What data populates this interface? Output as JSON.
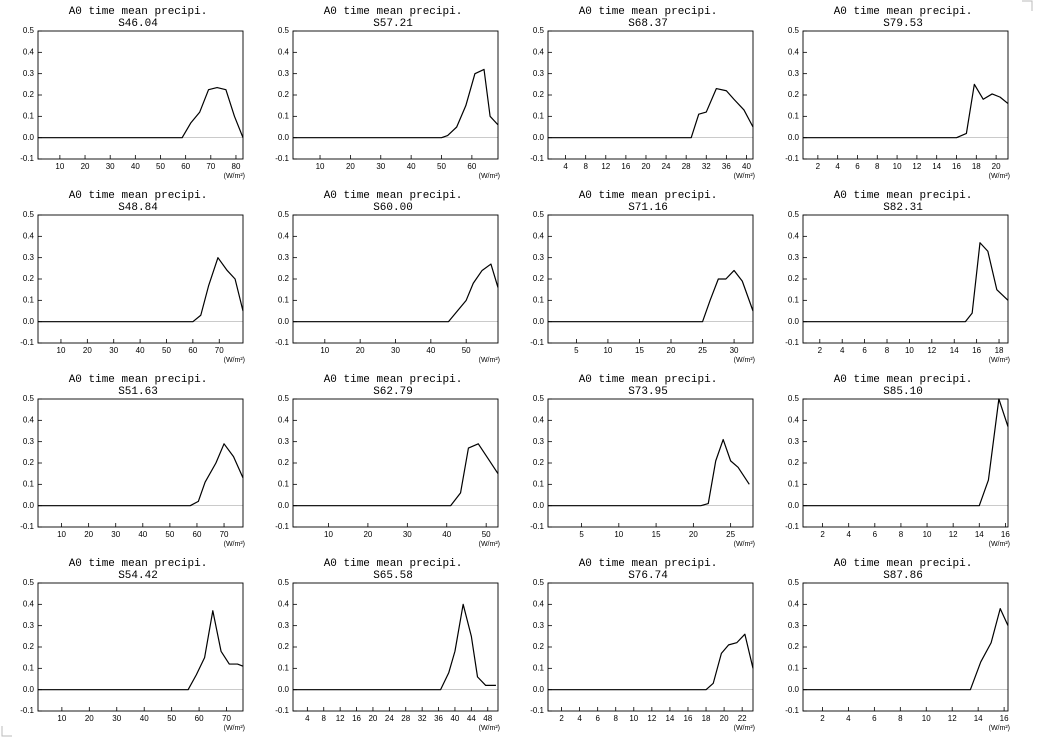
{
  "chart_data": [
    {
      "type": "line",
      "title": "A0 time mean precipi.",
      "subtitle": "S46.04",
      "x_label": "(W/m²)",
      "color": "#000000",
      "x": [
        1.3,
        58.6,
        62.1,
        65.6,
        69.1,
        72.5,
        76.0,
        79.4,
        82.8
      ],
      "values": [
        0,
        0,
        0.07,
        0.12,
        0.225,
        0.235,
        0.225,
        0.1,
        0.0
      ],
      "xlim": [
        1.3,
        82.8
      ],
      "xticks": [
        10,
        20,
        30,
        40,
        50,
        60,
        70,
        80
      ],
      "ylim": [
        -0.1,
        0.5
      ],
      "yticks": [
        -0.1,
        {
          "value": 0,
          "label": "0.0"
        },
        0.1,
        0.2,
        0.3,
        0.4,
        0.5
      ]
    },
    {
      "type": "line",
      "title": "A0 time mean precipi.",
      "subtitle": "S57.21",
      "x_label": "(W/m²)",
      "color": "#000000",
      "x": [
        1.1,
        50,
        52,
        55,
        58,
        61,
        64,
        66,
        68.6
      ],
      "values": [
        0,
        0,
        0.01,
        0.05,
        0.15,
        0.3,
        0.32,
        0.1,
        0.06
      ],
      "xlim": [
        1.1,
        68.6
      ],
      "xticks": [
        10,
        20,
        30,
        40,
        50,
        60
      ],
      "ylim": [
        -0.1,
        0.5
      ],
      "yticks": [
        -0.1,
        {
          "value": 0,
          "label": "0.0"
        },
        0.1,
        0.2,
        0.3,
        0.4,
        0.5
      ]
    },
    {
      "type": "line",
      "title": "A0 time mean precipi.",
      "subtitle": "S68.37",
      "x_label": "(W/m²)",
      "color": "#000000",
      "x": [
        0.5,
        29,
        30.5,
        32,
        34,
        36,
        37.5,
        39.5,
        41.3
      ],
      "values": [
        0,
        0,
        0.11,
        0.12,
        0.23,
        0.22,
        0.18,
        0.13,
        0.05
      ],
      "xlim": [
        0.5,
        41.3
      ],
      "xticks": [
        4,
        8,
        12,
        16,
        20,
        24,
        28,
        32,
        36,
        40
      ],
      "ylim": [
        -0.1,
        0.5
      ],
      "yticks": [
        -0.1,
        {
          "value": 0,
          "label": "0.0"
        },
        0.1,
        0.2,
        0.3,
        0.4,
        0.5
      ]
    },
    {
      "type": "line",
      "title": "A0 time mean precipi.",
      "subtitle": "S79.53",
      "x_label": "(W/m²)",
      "color": "#000000",
      "x": [
        0.5,
        16,
        17,
        17.8,
        18.7,
        19.6,
        20.4,
        21.2
      ],
      "values": [
        0,
        0,
        0.02,
        0.25,
        0.18,
        0.205,
        0.19,
        0.16
      ],
      "xlim": [
        0.5,
        21.2
      ],
      "xticks": [
        2,
        4,
        6,
        8,
        10,
        12,
        14,
        16,
        18,
        20
      ],
      "ylim": [
        -0.1,
        0.5
      ],
      "yticks": [
        -0.1,
        {
          "value": 0,
          "label": "0.0"
        },
        0.1,
        0.2,
        0.3,
        0.4,
        0.5
      ]
    },
    {
      "type": "line",
      "title": "A0 time mean precipi.",
      "subtitle": "S48.84",
      "x_label": "(W/m²)",
      "color": "#000000",
      "x": [
        1.3,
        60,
        63,
        66,
        69.5,
        73,
        76,
        79
      ],
      "values": [
        0,
        0,
        0.03,
        0.17,
        0.3,
        0.24,
        0.2,
        0.05
      ],
      "xlim": [
        1.3,
        79
      ],
      "xticks": [
        10,
        20,
        30,
        40,
        50,
        60,
        70
      ],
      "ylim": [
        -0.1,
        0.5
      ],
      "yticks": [
        -0.1,
        {
          "value": 0,
          "label": "0.0"
        },
        0.1,
        0.2,
        0.3,
        0.4,
        0.5
      ]
    },
    {
      "type": "line",
      "title": "A0 time mean precipi.",
      "subtitle": "S60.00",
      "x_label": "(W/m²)",
      "color": "#000000",
      "x": [
        1,
        45,
        47.5,
        50,
        52,
        54.5,
        57,
        59
      ],
      "values": [
        0,
        0,
        0.05,
        0.1,
        0.18,
        0.24,
        0.27,
        0.16
      ],
      "xlim": [
        1,
        59
      ],
      "xticks": [
        10,
        20,
        30,
        40,
        50
      ],
      "ylim": [
        -0.1,
        0.5
      ],
      "yticks": [
        -0.1,
        {
          "value": 0,
          "label": "0.0"
        },
        0.1,
        0.2,
        0.3,
        0.4,
        0.5
      ]
    },
    {
      "type": "line",
      "title": "A0 time mean precipi.",
      "subtitle": "S71.16",
      "x_label": "(W/m²)",
      "color": "#000000",
      "x": [
        0.5,
        25,
        26.2,
        27.5,
        28.7,
        30,
        31.3,
        33
      ],
      "values": [
        0,
        0,
        0.1,
        0.2,
        0.2,
        0.24,
        0.19,
        0.05
      ],
      "xlim": [
        0.5,
        33
      ],
      "xticks": [
        5,
        10,
        15,
        20,
        25,
        30
      ],
      "ylim": [
        -0.1,
        0.5
      ],
      "yticks": [
        -0.1,
        {
          "value": 0,
          "label": "0.0"
        },
        0.1,
        0.2,
        0.3,
        0.4,
        0.5
      ]
    },
    {
      "type": "line",
      "title": "A0 time mean precipi.",
      "subtitle": "S82.31",
      "x_label": "(W/m²)",
      "color": "#000000",
      "x": [
        0.5,
        15,
        15.6,
        16.3,
        17,
        17.8,
        18.8
      ],
      "values": [
        0,
        0,
        0.04,
        0.37,
        0.33,
        0.15,
        0.1
      ],
      "xlim": [
        0.5,
        18.8
      ],
      "xticks": [
        2,
        4,
        6,
        8,
        10,
        12,
        14,
        16,
        18
      ],
      "ylim": [
        -0.1,
        0.5
      ],
      "yticks": [
        -0.1,
        {
          "value": 0,
          "label": "0.0"
        },
        0.1,
        0.2,
        0.3,
        0.4,
        0.5
      ]
    },
    {
      "type": "line",
      "title": "A0 time mean precipi.",
      "subtitle": "S51.63",
      "x_label": "(W/m²)",
      "color": "#000000",
      "x": [
        1.3,
        57.5,
        60.5,
        63,
        67,
        70,
        73.5,
        77
      ],
      "values": [
        0,
        0,
        0.02,
        0.11,
        0.2,
        0.29,
        0.23,
        0.13
      ],
      "xlim": [
        1.3,
        77
      ],
      "xticks": [
        10,
        20,
        30,
        40,
        50,
        60,
        70
      ],
      "ylim": [
        -0.1,
        0.5
      ],
      "yticks": [
        -0.1,
        {
          "value": 0,
          "label": "0.0"
        },
        0.1,
        0.2,
        0.3,
        0.4,
        0.5
      ]
    },
    {
      "type": "line",
      "title": "A0 time mean precipi.",
      "subtitle": "S62.79",
      "x_label": "(W/m²)",
      "color": "#000000",
      "x": [
        1,
        41,
        43.5,
        45.5,
        48,
        50.5,
        53
      ],
      "values": [
        0,
        0,
        0.06,
        0.27,
        0.29,
        0.22,
        0.15
      ],
      "xlim": [
        1,
        53
      ],
      "xticks": [
        10,
        20,
        30,
        40,
        50
      ],
      "ylim": [
        -0.1,
        0.5
      ],
      "yticks": [
        -0.1,
        {
          "value": 0,
          "label": "0.0"
        },
        0.1,
        0.2,
        0.3,
        0.4,
        0.5
      ]
    },
    {
      "type": "line",
      "title": "A0 time mean precipi.",
      "subtitle": "S73.95",
      "x_label": "(W/m²)",
      "color": "#000000",
      "x": [
        0.5,
        21,
        22,
        23,
        24,
        25,
        26,
        27.5
      ],
      "values": [
        0,
        0,
        0.01,
        0.21,
        0.31,
        0.21,
        0.18,
        0.1
      ],
      "xlim": [
        0.5,
        28
      ],
      "xticks": [
        5,
        10,
        15,
        20,
        25
      ],
      "ylim": [
        -0.1,
        0.5
      ],
      "yticks": [
        -0.1,
        {
          "value": 0,
          "label": "0.0"
        },
        0.1,
        0.2,
        0.3,
        0.4,
        0.5
      ]
    },
    {
      "type": "line",
      "title": "A0 time mean precipi.",
      "subtitle": "S85.10",
      "x_label": "(W/m²)",
      "color": "#000000",
      "x": [
        0.5,
        14,
        14.7,
        15.5,
        16.2
      ],
      "values": [
        0,
        0,
        0.12,
        0.5,
        0.37
      ],
      "xlim": [
        0.5,
        16.2
      ],
      "xticks": [
        2,
        4,
        6,
        8,
        10,
        12,
        14,
        16
      ],
      "ylim": [
        -0.1,
        0.5
      ],
      "yticks": [
        -0.1,
        {
          "value": 0,
          "label": "0.0"
        },
        0.1,
        0.2,
        0.3,
        0.4,
        0.5
      ]
    },
    {
      "type": "line",
      "title": "A0 time mean precipi.",
      "subtitle": "S54.42",
      "x_label": "(W/m²)",
      "color": "#000000",
      "x": [
        1.3,
        56,
        59,
        62,
        65,
        68,
        71,
        74,
        76
      ],
      "values": [
        0,
        0,
        0.07,
        0.15,
        0.37,
        0.18,
        0.12,
        0.12,
        0.11
      ],
      "xlim": [
        1.3,
        76
      ],
      "xticks": [
        10,
        20,
        30,
        40,
        50,
        60,
        70
      ],
      "ylim": [
        -0.1,
        0.5
      ],
      "yticks": [
        -0.1,
        {
          "value": 0,
          "label": "0.0"
        },
        0.1,
        0.2,
        0.3,
        0.4,
        0.5
      ]
    },
    {
      "type": "line",
      "title": "A0 time mean precipi.",
      "subtitle": "S65.58",
      "x_label": "(W/m²)",
      "color": "#000000",
      "x": [
        0.5,
        36.5,
        38.5,
        40,
        42,
        44,
        45.5,
        47.5,
        50
      ],
      "values": [
        0,
        0,
        0.08,
        0.18,
        0.4,
        0.25,
        0.06,
        0.02,
        0.02
      ],
      "xlim": [
        0.5,
        50.5
      ],
      "xticks": [
        4,
        8,
        12,
        16,
        20,
        24,
        28,
        32,
        36,
        40,
        44,
        48
      ],
      "ylim": [
        -0.1,
        0.5
      ],
      "yticks": [
        -0.1,
        {
          "value": 0,
          "label": "0.0"
        },
        0.1,
        0.2,
        0.3,
        0.4,
        0.5
      ]
    },
    {
      "type": "line",
      "title": "A0 time mean precipi.",
      "subtitle": "S76.74",
      "x_label": "(W/m²)",
      "color": "#000000",
      "x": [
        0.5,
        18,
        18.8,
        19.7,
        20.5,
        21.4,
        22.3,
        23.2
      ],
      "values": [
        0,
        0,
        0.03,
        0.17,
        0.21,
        0.22,
        0.26,
        0.1
      ],
      "xlim": [
        0.5,
        23.2
      ],
      "xticks": [
        2,
        4,
        6,
        8,
        10,
        12,
        14,
        16,
        18,
        20,
        22
      ],
      "ylim": [
        -0.1,
        0.5
      ],
      "yticks": [
        -0.1,
        {
          "value": 0,
          "label": "0.0"
        },
        0.1,
        0.2,
        0.3,
        0.4,
        0.5
      ]
    },
    {
      "type": "line",
      "title": "A0 time mean precipi.",
      "subtitle": "S87.86",
      "x_label": "(W/m²)",
      "color": "#000000",
      "x": [
        0.5,
        13.4,
        14.2,
        15,
        15.7,
        16.3
      ],
      "values": [
        0,
        0,
        0.13,
        0.22,
        0.38,
        0.3
      ],
      "xlim": [
        0.5,
        16.3
      ],
      "xticks": [
        2,
        4,
        6,
        8,
        10,
        12,
        14,
        16
      ],
      "ylim": [
        -0.1,
        0.5
      ],
      "yticks": [
        -0.1,
        {
          "value": 0,
          "label": "0.0"
        },
        0.1,
        0.2,
        0.3,
        0.4,
        0.5
      ]
    }
  ]
}
